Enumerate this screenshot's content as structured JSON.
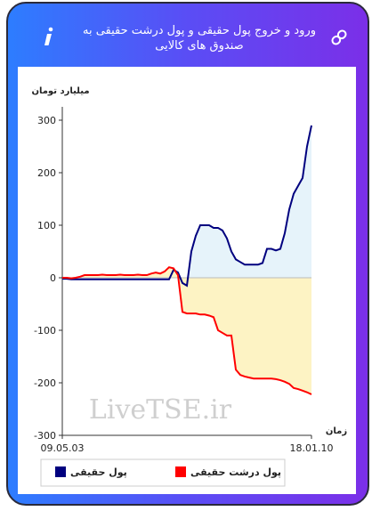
{
  "chart_data": {
    "type": "area",
    "title": "ورود و خروج پول حقیقی و پول درشت حقیقی به صندوق های کالایی",
    "y_label": "میلیارد تومان",
    "x_label": "زمان",
    "watermark": "LiveTSE.ir",
    "categories": [
      "09.05.03",
      null,
      null,
      null,
      null,
      null,
      null,
      null,
      null,
      null,
      null,
      null,
      null,
      null,
      null,
      null,
      null,
      null,
      null,
      null,
      null,
      null,
      null,
      null,
      null,
      null,
      null,
      null,
      null,
      null,
      null,
      null,
      null,
      null,
      null,
      null,
      null,
      null,
      null,
      null,
      null,
      null,
      null,
      null,
      null,
      null,
      null,
      null,
      null,
      null,
      null,
      null,
      null,
      null,
      null,
      null,
      "18.01.10"
    ],
    "series": [
      {
        "name": "پول حقیقی",
        "color": "#00007f",
        "fill": "#e6f3fa",
        "values": [
          -2,
          -2,
          -3,
          -3,
          -3,
          -3,
          -3,
          -3,
          -3,
          -3,
          -3,
          -3,
          -3,
          -3,
          -3,
          -3,
          -3,
          -3,
          -3,
          -3,
          -3,
          -3,
          -3,
          -3,
          -3,
          15,
          10,
          -10,
          -15,
          50,
          80,
          100,
          100,
          100,
          95,
          95,
          90,
          75,
          50,
          35,
          30,
          25,
          25,
          25,
          25,
          28,
          55,
          55,
          52,
          55,
          85,
          130,
          160,
          175,
          190,
          250,
          290
        ]
      },
      {
        "name": "پول درشت حقیقی",
        "color": "#ff0000",
        "fill": "#fdf3c4",
        "values": [
          0,
          0,
          -1,
          0,
          2,
          5,
          5,
          5,
          5,
          6,
          5,
          5,
          5,
          6,
          5,
          5,
          5,
          6,
          5,
          5,
          8,
          10,
          8,
          12,
          20,
          18,
          5,
          -65,
          -68,
          -68,
          -68,
          -70,
          -70,
          -72,
          -75,
          -100,
          -105,
          -110,
          -110,
          -175,
          -185,
          -188,
          -190,
          -192,
          -192,
          -192,
          -192,
          -192,
          -193,
          -195,
          -198,
          -202,
          -210,
          -212,
          -215,
          -218,
          -222
        ]
      }
    ],
    "ylim": [
      -300,
      300
    ],
    "yticks": [
      -300,
      -200,
      -100,
      0,
      100,
      200,
      300
    ],
    "zero_line": true
  }
}
